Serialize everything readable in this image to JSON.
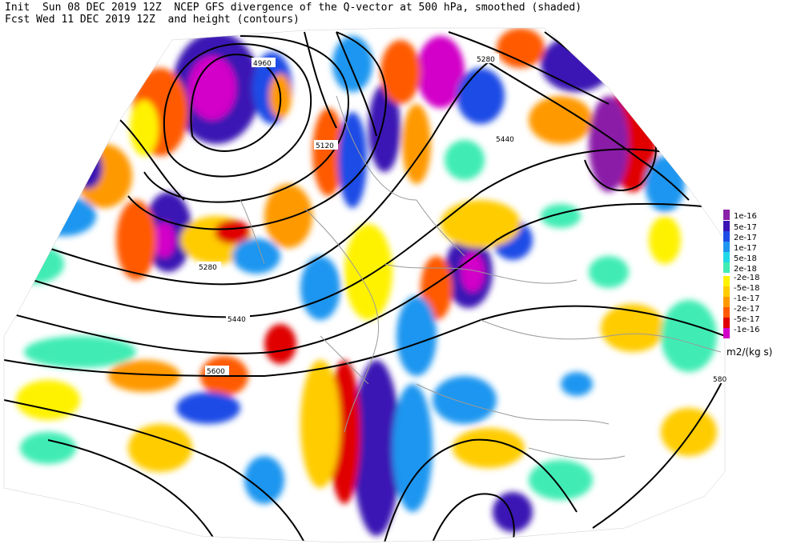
{
  "header": {
    "line1": "Init  Sun 08 DEC 2019 12Z  NCEP GFS divergence of the Q-vector at 500 hPa, smoothed (shaded)",
    "line2": "Fcst Wed 11 DEC 2019 12Z  and height (contours)"
  },
  "colorbar": {
    "units": "m2/(kg s)",
    "entries": [
      {
        "label": "1e-16",
        "color": "#8a1fa8"
      },
      {
        "label": "5e-17",
        "color": "#3a14b4"
      },
      {
        "label": "2e-17",
        "color": "#1e4be6"
      },
      {
        "label": "1e-17",
        "color": "#1e96f0"
      },
      {
        "label": "5e-18",
        "color": "#20d8e8"
      },
      {
        "label": "2e-18",
        "color": "#40ecb4"
      },
      {
        "label": "-2e-18",
        "color": "#fff200"
      },
      {
        "label": "-5e-18",
        "color": "#ffcc00"
      },
      {
        "label": "-1e-17",
        "color": "#ff9900"
      },
      {
        "label": "-2e-17",
        "color": "#ff5a00"
      },
      {
        "label": "-5e-17",
        "color": "#e00000"
      },
      {
        "label": "-1e-16",
        "color": "#d200c8"
      }
    ]
  },
  "contour_labels": [
    "4960",
    "5120",
    "5280",
    "5440",
    "5280",
    "5440",
    "5600",
    "580"
  ]
}
